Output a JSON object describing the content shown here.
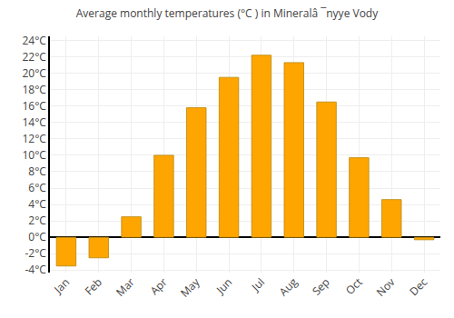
{
  "chart_data": {
    "type": "bar",
    "title": "Average monthly temperatures (°C ) in Mineralâ ¯nyye Vody",
    "categories": [
      "Jan",
      "Feb",
      "Mar",
      "Apr",
      "May",
      "Jun",
      "Jul",
      "Aug",
      "Sep",
      "Oct",
      "Nov",
      "Dec"
    ],
    "values": [
      -3.5,
      -2.5,
      2.5,
      10.0,
      15.8,
      19.5,
      22.2,
      21.3,
      16.5,
      9.7,
      4.6,
      -0.3
    ],
    "color": "#FFA500",
    "ylim": [
      -4.3,
      24.5
    ],
    "yticks": [
      {
        "value": -4,
        "label": "-4°C"
      },
      {
        "value": -2,
        "label": "-2°C"
      },
      {
        "value": 0,
        "label": "0°C"
      },
      {
        "value": 2,
        "label": "2°C"
      },
      {
        "value": 4,
        "label": "4°C"
      },
      {
        "value": 6,
        "label": "6°C"
      },
      {
        "value": 8,
        "label": "8°C"
      },
      {
        "value": 10,
        "label": "10°C"
      },
      {
        "value": 12,
        "label": "12°C"
      },
      {
        "value": 14,
        "label": "14°C"
      },
      {
        "value": 16,
        "label": "16°C"
      },
      {
        "value": 18,
        "label": "18°C"
      },
      {
        "value": 20,
        "label": "20°C"
      },
      {
        "value": 22,
        "label": "22°C"
      },
      {
        "value": 24,
        "label": "24°C"
      }
    ],
    "grid": true
  }
}
